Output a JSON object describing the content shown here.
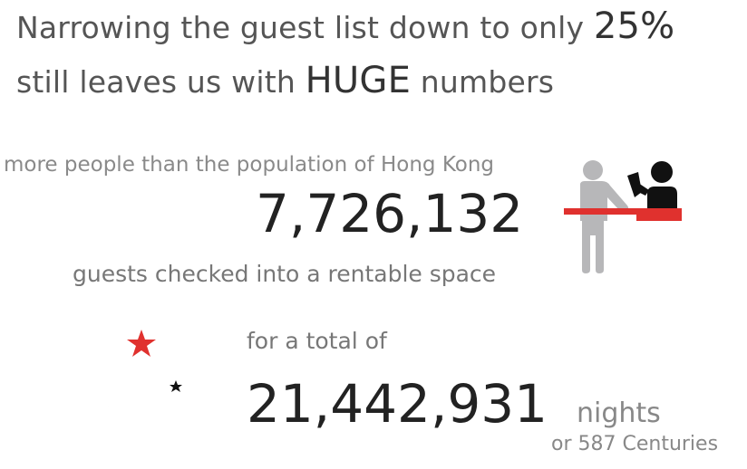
{
  "headline": {
    "line1_prefix": "Narrowing the guest list down to only ",
    "line1_emphasis": "25%",
    "line2_prefix": "still leaves us with ",
    "line2_emphasis": "HUGE",
    "line2_suffix": " numbers"
  },
  "guests": {
    "comparison": "more people than the population of Hong Kong",
    "count": "7,726,132",
    "caption": "guests checked into a rentable space",
    "icon": "hotel-checkin-icon"
  },
  "nights": {
    "lead": "for a total of",
    "count": "21,442,931",
    "unit": "nights",
    "equivalent": "or 587 Centuries",
    "icon": "crescent-moon-stars-icon"
  },
  "colors": {
    "text_dark": "#222222",
    "text_mid": "#555555",
    "text_light": "#8a8a8a",
    "accent_red": "#e0312e",
    "icon_gray": "#b7b7b9"
  }
}
